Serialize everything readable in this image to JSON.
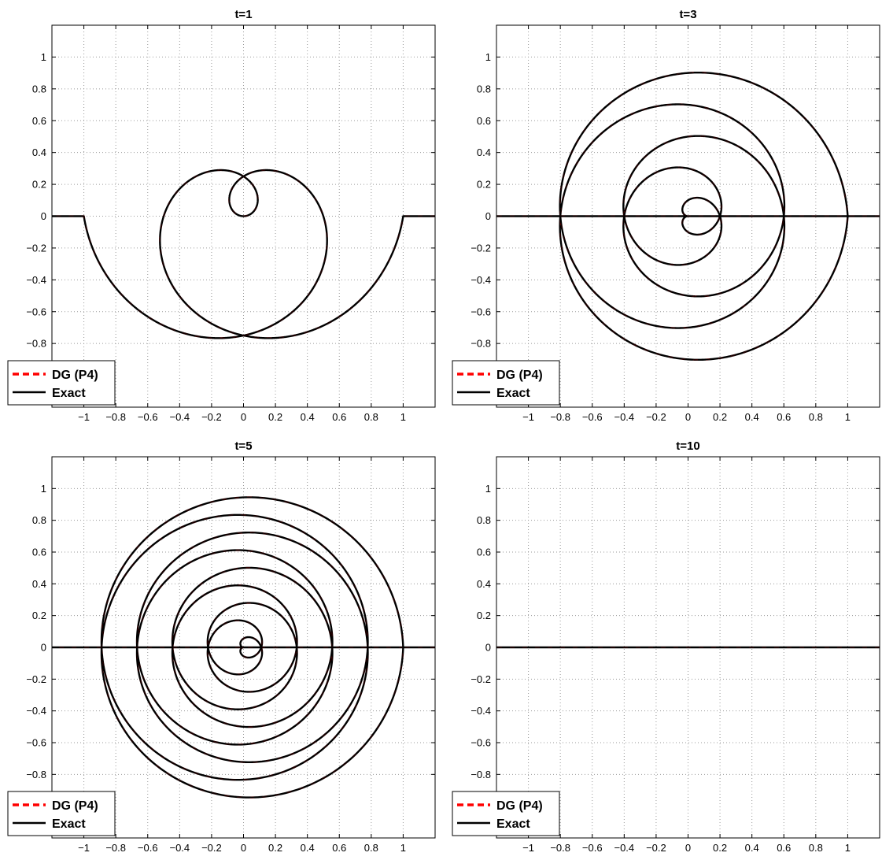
{
  "chart_data": [
    {
      "type": "line",
      "title": "t=1",
      "xlabel": "",
      "ylabel": "",
      "xlim": [
        -1.2,
        1.2
      ],
      "ylim": [
        -1.2,
        1.2
      ],
      "xticks": [
        -1,
        -0.8,
        -0.6,
        -0.4,
        -0.2,
        0,
        0.2,
        0.4,
        0.6,
        0.8,
        1
      ],
      "yticks": [
        -0.8,
        -0.6,
        -0.4,
        -0.2,
        0,
        0.2,
        0.4,
        0.6,
        0.8,
        1
      ],
      "grid": true,
      "legend_position": "bottom-left",
      "spiral_turns": 2,
      "spiral_direction": 1,
      "series": [
        {
          "name": "DG (P4)",
          "color": "#ff0000",
          "style": "dashed"
        },
        {
          "name": "Exact",
          "color": "#000000",
          "style": "solid"
        }
      ]
    },
    {
      "type": "line",
      "title": "t=3",
      "xlabel": "",
      "ylabel": "",
      "xlim": [
        -1.2,
        1.2
      ],
      "ylim": [
        -1.2,
        1.2
      ],
      "xticks": [
        -1,
        -0.8,
        -0.6,
        -0.4,
        -0.2,
        0,
        0.2,
        0.4,
        0.6,
        0.8,
        1
      ],
      "yticks": [
        -0.8,
        -0.6,
        -0.4,
        -0.2,
        0,
        0.2,
        0.4,
        0.6,
        0.8,
        1
      ],
      "grid": true,
      "legend_position": "bottom-left",
      "spiral_turns": 5,
      "spiral_direction": -1,
      "series": [
        {
          "name": "DG (P4)",
          "color": "#ff0000",
          "style": "dashed"
        },
        {
          "name": "Exact",
          "color": "#000000",
          "style": "solid"
        }
      ]
    },
    {
      "type": "line",
      "title": "t=5",
      "xlabel": "",
      "ylabel": "",
      "xlim": [
        -1.2,
        1.2
      ],
      "ylim": [
        -1.2,
        1.2
      ],
      "xticks": [
        -1,
        -0.8,
        -0.6,
        -0.4,
        -0.2,
        0,
        0.2,
        0.4,
        0.6,
        0.8,
        1
      ],
      "yticks": [
        -0.8,
        -0.6,
        -0.4,
        -0.2,
        0,
        0.2,
        0.4,
        0.6,
        0.8,
        1
      ],
      "grid": true,
      "legend_position": "bottom-left",
      "spiral_turns": 9,
      "spiral_direction": 1,
      "series": [
        {
          "name": "DG (P4)",
          "color": "#ff0000",
          "style": "dashed"
        },
        {
          "name": "Exact",
          "color": "#000000",
          "style": "solid"
        }
      ]
    },
    {
      "type": "line",
      "title": "t=10",
      "xlabel": "",
      "ylabel": "",
      "xlim": [
        -1.2,
        1.2
      ],
      "ylim": [
        -1.2,
        1.2
      ],
      "xticks": [
        -1,
        -0.8,
        -0.6,
        -0.4,
        -0.2,
        0,
        0.2,
        0.4,
        0.6,
        0.8,
        1
      ],
      "yticks": [
        -0.8,
        -0.6,
        -0.4,
        -0.2,
        0,
        0.2,
        0.4,
        0.6,
        0.8,
        1
      ],
      "grid": true,
      "legend_position": "bottom-left",
      "spiral_turns": 0,
      "spiral_direction": 1,
      "series": [
        {
          "name": "DG (P4)",
          "color": "#ff0000",
          "style": "dashed"
        },
        {
          "name": "Exact",
          "color": "#000000",
          "style": "solid"
        }
      ]
    }
  ]
}
